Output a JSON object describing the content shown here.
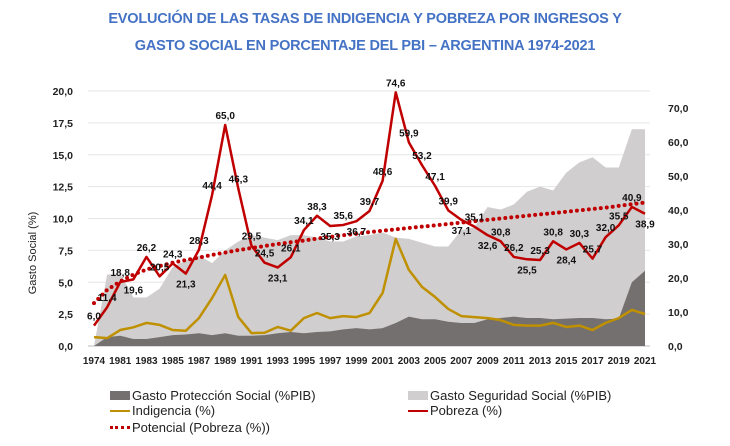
{
  "chart_data": {
    "type": "line+area",
    "title": [
      "EVOLUCIÓN DE LAS TASAS DE INDIGENCIA Y POBREZA POR INGRESOS Y",
      "GASTO SOCIAL EN PORCENTAJE DEL PBI – ARGENTINA 1974-2021"
    ],
    "ylabel": "Gasto Social (%)",
    "ylabel_right": "",
    "ylim": [
      0,
      20
    ],
    "yticks": [
      "0,0",
      "2,5",
      "5,0",
      "7,5",
      "10,0",
      "12,5",
      "15,0",
      "17,5",
      "20,0"
    ],
    "ylim_right": [
      0,
      75
    ],
    "yticks_right": [
      "0,0",
      "10,0",
      "20,0",
      "30,0",
      "40,0",
      "50,0",
      "60,0",
      "70,0"
    ],
    "grid": true,
    "legend_position": "bottom",
    "categories": [
      1974,
      1980,
      1981,
      1982,
      1983,
      1984,
      1985,
      1986,
      1987,
      1988,
      1989,
      1990,
      1991,
      1992,
      1993,
      1994,
      1995,
      1996,
      1997,
      1998,
      1999,
      2000,
      2001,
      2002,
      2003,
      2004,
      2005,
      2006,
      2007,
      2008,
      2009,
      2010,
      2011,
      2012,
      2013,
      2014,
      2015,
      2016,
      2017,
      2018,
      2019,
      2020,
      2021
    ],
    "xtick_labels": [
      "1974",
      "1981",
      "1983",
      "1985",
      "1987",
      "1989",
      "1991",
      "1993",
      "1995",
      "1997",
      "1999",
      "2001",
      "2003",
      "2005",
      "2007",
      "2009",
      "2011",
      "2013",
      "2015",
      "2017",
      "2019",
      "2021"
    ],
    "series": [
      {
        "name": "Gasto Protección Social (%PIB)",
        "kind": "area",
        "axis": "left",
        "color": "#747070",
        "values": [
          0,
          0.7,
          0.8,
          0.55,
          0.55,
          0.7,
          0.85,
          0.9,
          1.0,
          0.85,
          1.0,
          0.8,
          0.8,
          0.85,
          1.0,
          1.1,
          1.0,
          1.1,
          1.15,
          1.3,
          1.4,
          1.3,
          1.4,
          1.8,
          2.3,
          2.1,
          2.1,
          1.9,
          1.8,
          1.8,
          2.1,
          2.2,
          2.3,
          2.2,
          2.2,
          2.1,
          2.15,
          2.2,
          2.2,
          2.1,
          2.15,
          5.0,
          5.9
        ]
      },
      {
        "name": "Gasto Seguridad Social (%PIB)",
        "kind": "area",
        "axis": "left",
        "color": "#D0CECE",
        "values": [
          0,
          5.6,
          5.7,
          3.8,
          3.8,
          4.5,
          6.2,
          6.7,
          7.1,
          6.5,
          7.5,
          8.2,
          8.7,
          8.5,
          8.3,
          8.7,
          8.7,
          8.5,
          8.2,
          8.2,
          8.6,
          8.7,
          8.9,
          8.5,
          8.4,
          8.1,
          7.8,
          7.8,
          9.1,
          9.3,
          10.9,
          10.7,
          11.1,
          12.1,
          12.5,
          12.2,
          13.6,
          14.4,
          14.8,
          14.0,
          14.0,
          17.0,
          17.0
        ]
      },
      {
        "name": "Indigencia (%)",
        "kind": "line",
        "axis": "right",
        "color": "#BF9000",
        "values": [
          2.6,
          2.3,
          4.7,
          5.5,
          6.8,
          6.2,
          4.7,
          4.5,
          8.2,
          14.1,
          20.9,
          8.5,
          3.8,
          3.9,
          5.6,
          4.5,
          8.2,
          9.7,
          8.2,
          8.8,
          8.5,
          9.7,
          15.6,
          31.5,
          22.4,
          17.4,
          14.4,
          10.9,
          8.8,
          8.5,
          8.2,
          7.6,
          6.2,
          6.0,
          6.0,
          6.8,
          5.6,
          6.0,
          4.7,
          6.8,
          8.2,
          10.6,
          9.4
        ]
      },
      {
        "name": "Pobreza (%)",
        "kind": "line",
        "axis": "right",
        "color": "#C00000",
        "values": [
          6.0,
          11.4,
          18.8,
          19.6,
          26.2,
          20.5,
          24.3,
          21.3,
          28.3,
          44.4,
          65.0,
          46.3,
          29.5,
          24.5,
          23.1,
          26.1,
          34.1,
          38.3,
          35.3,
          35.6,
          36.7,
          39.7,
          48.6,
          74.6,
          59.9,
          53.2,
          47.1,
          39.9,
          37.1,
          35.1,
          32.6,
          30.8,
          26.2,
          25.5,
          25.3,
          30.8,
          28.4,
          30.3,
          25.7,
          32.0,
          35.5,
          40.9,
          38.9
        ],
        "labels": [
          "6,0",
          "11,4",
          "18,8",
          "19,6",
          "26,2",
          "20,5",
          "24,3",
          "21,3",
          "28,3",
          "44,4",
          "65,0",
          "46,3",
          "29,5",
          "24,5",
          "23,1",
          "26,1",
          "34,1",
          "38,3",
          "35,3",
          "35,6",
          "36,7",
          "39,7",
          "48,6",
          "74,6",
          "59,9",
          "53,2",
          "47,1",
          "39,9",
          "37,1",
          "35,1",
          "32,6",
          "30,8",
          "26,2",
          "25,5",
          "25,3",
          "30,8",
          "28,4",
          "30,3",
          "25,7",
          "32,0",
          "35,5",
          "40,9",
          "38,9"
        ]
      },
      {
        "name": "Potencial (Pobreza (%))",
        "kind": "dotted",
        "axis": "right",
        "color": "#C00000",
        "values": [
          12.6,
          16.5,
          19,
          21,
          22.5,
          23.5,
          24.5,
          25.3,
          26,
          26.8,
          27.5,
          28.2,
          28.8,
          29.4,
          30,
          30.5,
          31,
          31.6,
          32.1,
          32.6,
          33,
          33.5,
          33.9,
          34.3,
          34.7,
          35.1,
          35.5,
          35.9,
          36.3,
          36.7,
          37.1,
          37.5,
          37.9,
          38.3,
          38.7,
          39.1,
          39.5,
          39.9,
          40.3,
          40.7,
          41.2,
          41.7,
          42.2
        ]
      }
    ]
  }
}
